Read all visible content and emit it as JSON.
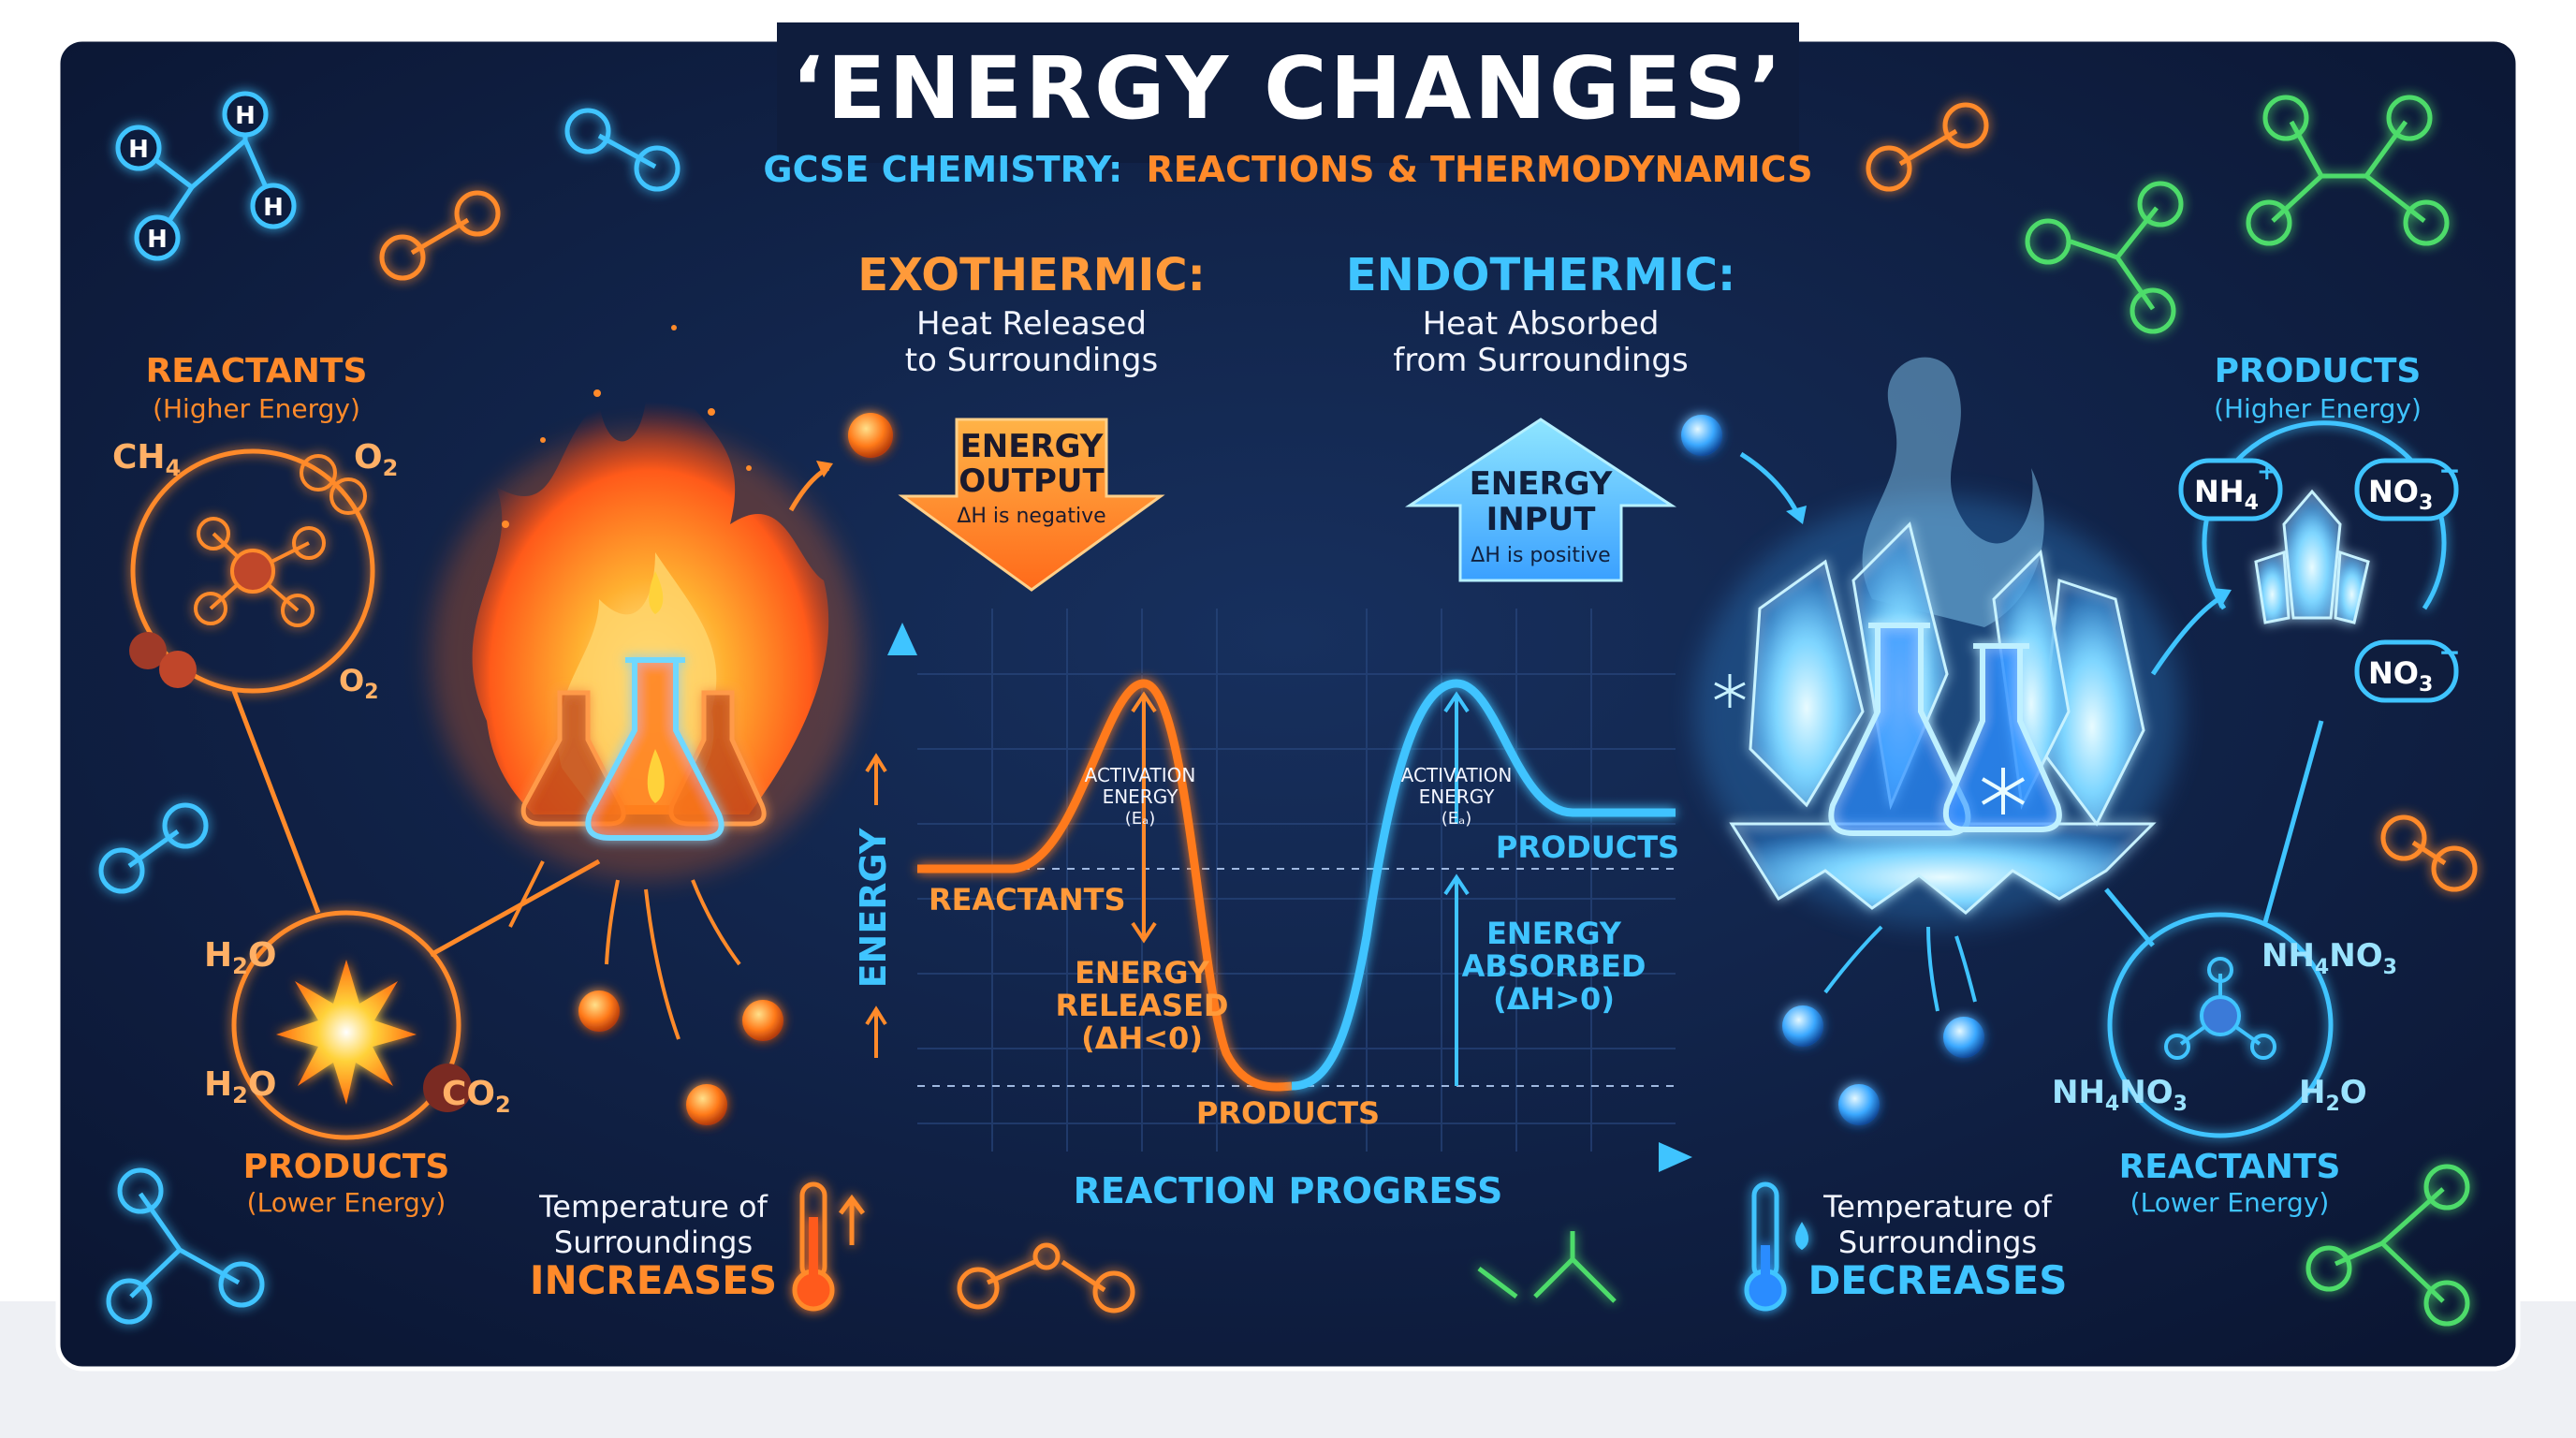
{
  "title": "‘ENERGY CHANGES’",
  "subtitle_prefix": "GCSE CHEMISTRY:",
  "subtitle_suffix": "REACTIONS & THERMODYNAMICS",
  "colors": {
    "background": "#0f1d3d",
    "exo": "#ff8a2a",
    "exo_light": "#ffb066",
    "endo": "#3fc4ff",
    "endo_light": "#9be3ff",
    "green": "#4ddc6a",
    "text_white": "#f2f5ff"
  },
  "left": {
    "reactants_label": "REACTANTS",
    "reactants_sub": "(Higher Energy)",
    "formula_ch4": "CH",
    "formula_ch4_sub": "4",
    "formula_o2_a": "O",
    "formula_o2_a_sub": "2",
    "formula_o2_b": "O",
    "formula_o2_b_sub": "2",
    "formula_h2o_a": "H",
    "formula_h2o_a_sub": "2",
    "formula_h2o_a_end": "O",
    "formula_h2o_b": "H",
    "formula_h2o_b_sub": "2",
    "formula_h2o_b_end": "O",
    "formula_co2": "CO",
    "formula_co2_sub": "2",
    "products_label": "PRODUCTS",
    "products_sub": "(Lower Energy)",
    "temp_line1": "Temperature of",
    "temp_line2": "Surroundings",
    "temp_change": "INCREASES"
  },
  "right": {
    "products_label": "PRODUCTS",
    "products_sub": "(Higher Energy)",
    "nh4": "NH",
    "nh4_sub": "4",
    "nh4_charge": "+",
    "no3_a": "NO",
    "no3_a_sub": "3",
    "no3_a_charge": "−",
    "no3_b": "NO",
    "no3_b_sub": "3",
    "no3_b_charge": "−",
    "nh4no3_a_1": "NH",
    "nh4no3_a_s1": "4",
    "nh4no3_a_2": "NO",
    "nh4no3_a_s2": "3",
    "nh4no3_b_1": "NH",
    "nh4no3_b_s1": "4",
    "nh4no3_b_2": "NO",
    "nh4no3_b_s2": "3",
    "h2o_1": "H",
    "h2o_sub": "2",
    "h2o_2": "O",
    "reactants_label": "REACTANTS",
    "reactants_sub": "(Lower Energy)",
    "temp_line1": "Temperature of",
    "temp_line2": "Surroundings",
    "temp_change": "DECREASES"
  },
  "exo": {
    "heading": "EXOTHERMIC:",
    "line1": "Heat Released",
    "line2": "to Surroundings",
    "arrow_line1": "ENERGY",
    "arrow_line2": "OUTPUT",
    "arrow_line3": "ΔH is negative"
  },
  "endo": {
    "heading": "ENDOTHERMIC:",
    "line1": "Heat Absorbed",
    "line2": "from Surroundings",
    "arrow_line1": "ENERGY",
    "arrow_line2": "INPUT",
    "arrow_line3": "ΔH is positive"
  },
  "diagram": {
    "y_axis": "ENERGY",
    "x_axis": "REACTION PROGRESS",
    "exo_activation_1": "ACTIVATION",
    "exo_activation_2": "ENERGY",
    "exo_activation_3": "(Eₐ)",
    "endo_activation_1": "ACTIVATION",
    "endo_activation_2": "ENERGY",
    "endo_activation_3": "(Eₐ)",
    "reactants": "REACTANTS",
    "products_low": "PRODUCTS",
    "products_high": "PRODUCTS",
    "released_1": "ENERGY",
    "released_2": "RELEASED",
    "released_3": "(ΔH<0)",
    "absorbed_1": "ENERGY",
    "absorbed_2": "ABSORBED",
    "absorbed_3": "(ΔH>0)"
  },
  "atom_label": "H",
  "atom_o": "O",
  "icons": [
    "flame-icon",
    "flask-icon",
    "ice-crystal-icon",
    "thermometer-icon",
    "snowflake-icon",
    "molecule-icon",
    "starburst-icon"
  ]
}
